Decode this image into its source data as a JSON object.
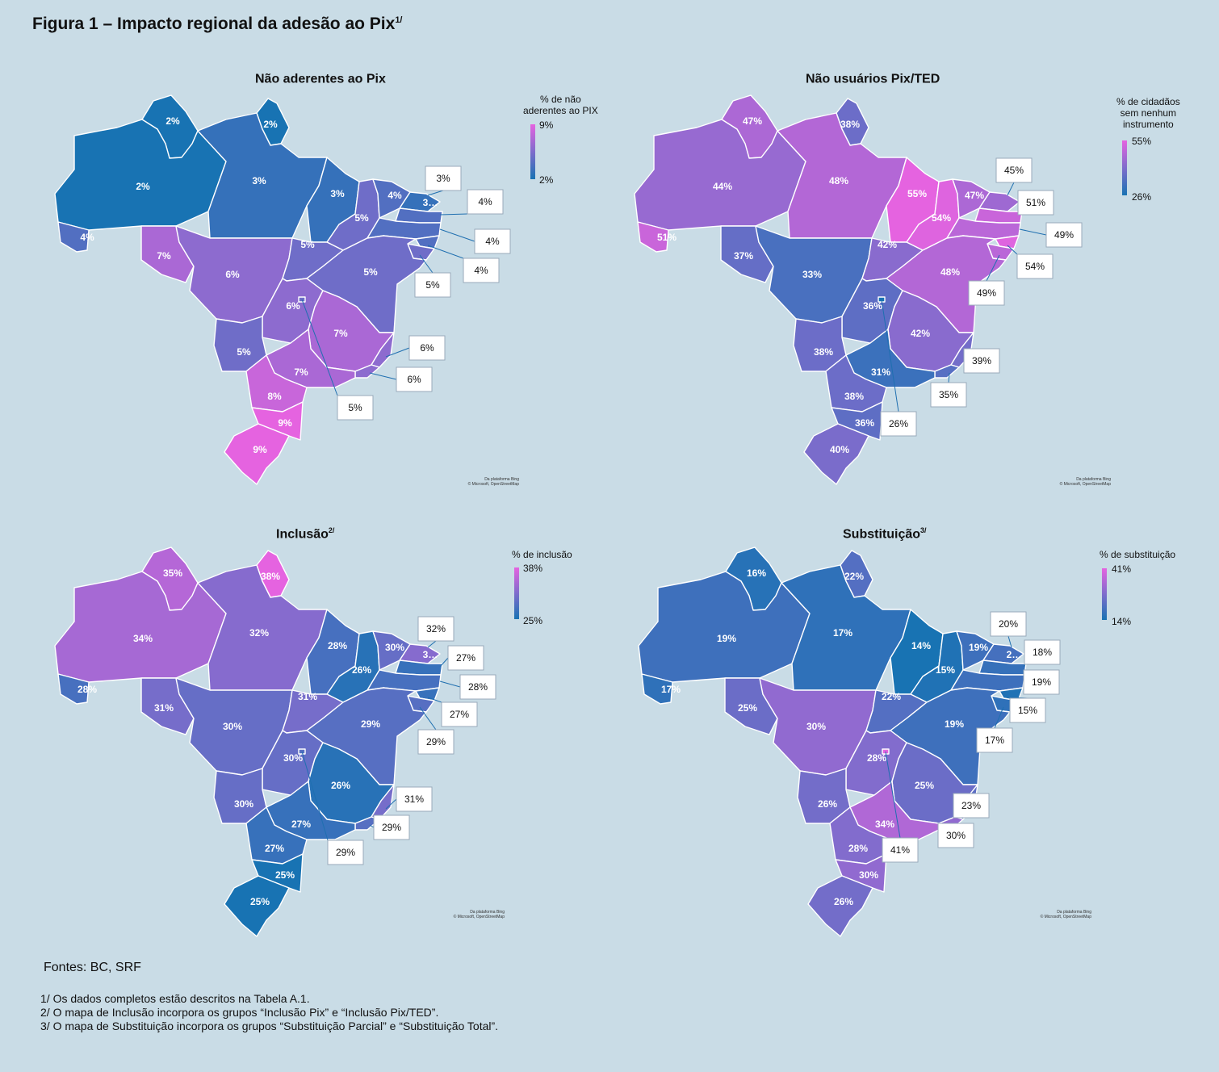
{
  "figure": {
    "title": "Figura 1 – Impacto regional da adesão ao Pix",
    "title_sup": "1/",
    "sources": "Fontes: BC, SRF",
    "notes": [
      "1/ Os dados completos estão descritos na Tabela A.1.",
      "2/ O mapa de Inclusão incorpora os grupos “Inclusão Pix” e “Inclusão Pix/TED”.",
      "3/ O mapa de Substituição incorpora os grupos “Substituição Parcial” e “Substituição Total”."
    ],
    "attribution_line1": "Da plataforma Bing",
    "attribution_line2": "© Microsoft, OpenStreetMap"
  },
  "colors": {
    "low": "#1873b3",
    "mid": "#7e6ccc",
    "high": "#e563e0",
    "border": "#ffffff",
    "background": "#c9dce6"
  },
  "maps": [
    {
      "title": "Não aderentes ao Pix",
      "title_sup": "",
      "legend_title": "% de não\naderentes ao PIX",
      "legend_max": "9%",
      "legend_min": "2%",
      "min": 2,
      "max": 9,
      "states": {
        "RR": {
          "label": "2%",
          "value": 2
        },
        "AP": {
          "label": "2%",
          "value": 2
        },
        "AM": {
          "label": "2%",
          "value": 2
        },
        "PA": {
          "label": "3%",
          "value": 3
        },
        "AC": {
          "label": "4%",
          "value": 4
        },
        "RO": {
          "label": "7%",
          "value": 7
        },
        "MT": {
          "label": "6%",
          "value": 6
        },
        "MA": {
          "label": "3%",
          "value": 3
        },
        "PI": {
          "label": "5%",
          "value": 5
        },
        "CE": {
          "label": "4%",
          "value": 4
        },
        "RN": {
          "label": "3…",
          "value": 3
        },
        "TO": {
          "label": "5%",
          "value": 5
        },
        "BA": {
          "label": "5%",
          "value": 5
        },
        "GO": {
          "label": "6%",
          "value": 6
        },
        "MS": {
          "label": "5%",
          "value": 5
        },
        "MG": {
          "label": "7%",
          "value": 7
        },
        "SP": {
          "label": "7%",
          "value": 7
        },
        "PR": {
          "label": "8%",
          "value": 8
        },
        "SC": {
          "label": "9%",
          "value": 9
        },
        "RS": {
          "label": "9%",
          "value": 9
        },
        "PB": {
          "value": 4
        },
        "PE": {
          "value": 4
        },
        "AL": {
          "value": 4
        },
        "SE": {
          "value": 5
        },
        "ES": {
          "value": 6
        },
        "RJ": {
          "value": 6
        },
        "DF": {
          "value": 5
        }
      },
      "callouts": {
        "RN": "3%",
        "PB": "4%",
        "PE": "4%",
        "AL": "4%",
        "SE": "5%",
        "ES": "6%",
        "RJ": "6%",
        "DF": "5%"
      }
    },
    {
      "title": "Não usuários Pix/TED",
      "title_sup": "",
      "legend_title": "% de cidadãos\nsem nenhum\ninstrumento",
      "legend_max": "55%",
      "legend_min": "26%",
      "min": 26,
      "max": 55,
      "states": {
        "RR": {
          "label": "47%",
          "value": 47
        },
        "AP": {
          "label": "38%",
          "value": 38
        },
        "AM": {
          "label": "44%",
          "value": 44
        },
        "PA": {
          "label": "48%",
          "value": 48
        },
        "AC": {
          "label": "51%",
          "value": 51
        },
        "RO": {
          "label": "37%",
          "value": 37
        },
        "MT": {
          "label": "33%",
          "value": 33
        },
        "MA": {
          "label": "55%",
          "value": 55
        },
        "PI": {
          "label": "54%",
          "value": 54
        },
        "CE": {
          "label": "47%",
          "value": 47
        },
        "RN": {
          "value": 45
        },
        "TO": {
          "label": "42%",
          "value": 42
        },
        "BA": {
          "label": "48%",
          "value": 48
        },
        "GO": {
          "label": "36%",
          "value": 36
        },
        "MS": {
          "label": "38%",
          "value": 38
        },
        "MG": {
          "label": "42%",
          "value": 42
        },
        "SP": {
          "label": "31%",
          "value": 31
        },
        "PR": {
          "label": "38%",
          "value": 38
        },
        "SC": {
          "label": "36%",
          "value": 36
        },
        "RS": {
          "label": "40%",
          "value": 40
        },
        "PB": {
          "value": 51
        },
        "PE": {
          "value": 49
        },
        "AL": {
          "value": 54
        },
        "SE": {
          "value": 49
        },
        "ES": {
          "value": 39
        },
        "RJ": {
          "value": 35
        },
        "DF": {
          "value": 26
        }
      },
      "callouts": {
        "RN": "45%",
        "PB": "51%",
        "PE": "49%",
        "AL": "54%",
        "SE": "49%",
        "ES": "39%",
        "RJ": "35%",
        "DF": "26%"
      }
    },
    {
      "title": "Inclusão",
      "title_sup": "2/",
      "legend_title": "% de inclusão",
      "legend_max": "38%",
      "legend_min": "25%",
      "min": 25,
      "max": 38,
      "states": {
        "RR": {
          "label": "35%",
          "value": 35
        },
        "AP": {
          "label": "38%",
          "value": 38
        },
        "AM": {
          "label": "34%",
          "value": 34
        },
        "PA": {
          "label": "32%",
          "value": 32
        },
        "AC": {
          "label": "28%",
          "value": 28
        },
        "RO": {
          "label": "31%",
          "value": 31
        },
        "MT": {
          "label": "30%",
          "value": 30
        },
        "MA": {
          "label": "28%",
          "value": 28
        },
        "PI": {
          "label": "26%",
          "value": 26
        },
        "CE": {
          "label": "30%",
          "value": 30
        },
        "RN": {
          "label": "3…",
          "value": 32
        },
        "TO": {
          "label": "31%",
          "value": 31
        },
        "BA": {
          "label": "29%",
          "value": 29
        },
        "GO": {
          "label": "30%",
          "value": 30
        },
        "MS": {
          "label": "30%",
          "value": 30
        },
        "MG": {
          "label": "26%",
          "value": 26
        },
        "SP": {
          "label": "27%",
          "value": 27
        },
        "PR": {
          "label": "27%",
          "value": 27
        },
        "SC": {
          "label": "25%",
          "value": 25
        },
        "RS": {
          "label": "25%",
          "value": 25
        },
        "PB": {
          "value": 27
        },
        "PE": {
          "value": 28
        },
        "AL": {
          "value": 27
        },
        "SE": {
          "value": 29
        },
        "ES": {
          "value": 31
        },
        "RJ": {
          "value": 29
        },
        "DF": {
          "value": 29
        }
      },
      "callouts": {
        "RN": "32%",
        "PB": "27%",
        "PE": "28%",
        "AL": "27%",
        "SE": "29%",
        "ES": "31%",
        "RJ": "29%",
        "DF": "29%"
      }
    },
    {
      "title": "Substituição",
      "title_sup": "3/",
      "legend_title": "% de substituição",
      "legend_max": "41%",
      "legend_min": "14%",
      "min": 14,
      "max": 41,
      "states": {
        "RR": {
          "label": "16%",
          "value": 16
        },
        "AP": {
          "label": "22%",
          "value": 22
        },
        "AM": {
          "label": "19%",
          "value": 19
        },
        "PA": {
          "label": "17%",
          "value": 17
        },
        "AC": {
          "label": "17%",
          "value": 17
        },
        "RO": {
          "label": "25%",
          "value": 25
        },
        "MT": {
          "label": "30%",
          "value": 30
        },
        "MA": {
          "label": "14%",
          "value": 14
        },
        "PI": {
          "label": "15%",
          "value": 15
        },
        "CE": {
          "label": "19%",
          "value": 19
        },
        "RN": {
          "label": "2…",
          "value": 20
        },
        "TO": {
          "label": "22%",
          "value": 22
        },
        "BA": {
          "label": "19%",
          "value": 19
        },
        "GO": {
          "label": "28%",
          "value": 28
        },
        "MS": {
          "label": "26%",
          "value": 26
        },
        "MG": {
          "label": "25%",
          "value": 25
        },
        "SP": {
          "label": "34%",
          "value": 34
        },
        "PR": {
          "label": "28%",
          "value": 28
        },
        "SC": {
          "label": "30%",
          "value": 30
        },
        "RS": {
          "label": "26%",
          "value": 26
        },
        "PB": {
          "value": 18
        },
        "PE": {
          "value": 19
        },
        "AL": {
          "value": 15
        },
        "SE": {
          "value": 17
        },
        "ES": {
          "value": 23
        },
        "RJ": {
          "value": 30
        },
        "DF": {
          "value": 41
        }
      },
      "callouts": {
        "RN": "20%",
        "PB": "18%",
        "PE": "19%",
        "AL": "15%",
        "SE": "17%",
        "ES": "23%",
        "RJ": "30%",
        "DF": "41%"
      }
    }
  ]
}
